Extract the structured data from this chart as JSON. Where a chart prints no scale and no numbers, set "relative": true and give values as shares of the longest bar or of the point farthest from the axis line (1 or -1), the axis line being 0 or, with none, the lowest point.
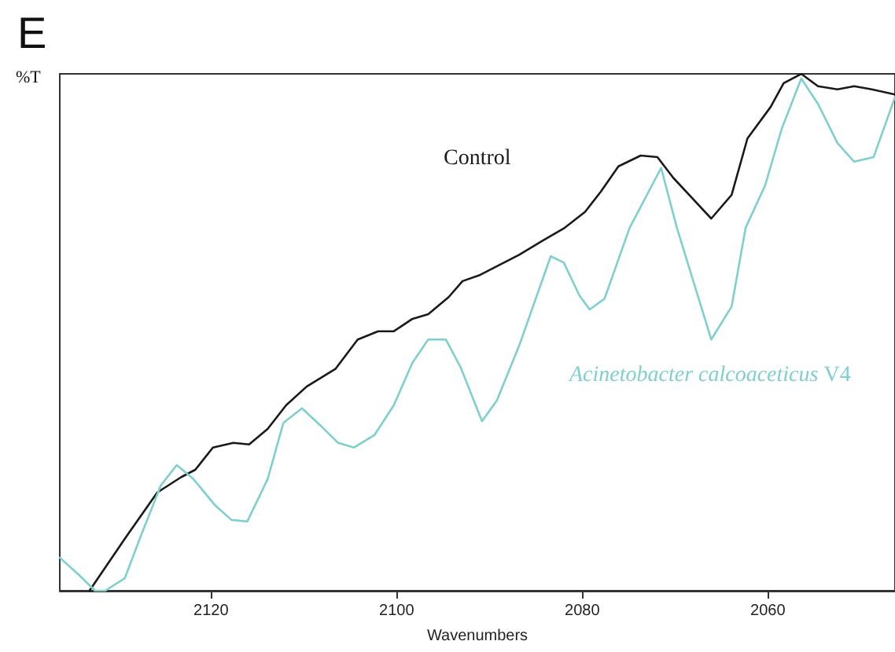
{
  "chart_data": {
    "type": "line",
    "title": "E",
    "xlabel": "Wavenumbers",
    "ylabel": "%T",
    "relative": true,
    "xlim": [
      2136.3,
      2046.3
    ],
    "xticks": [
      2120,
      2100,
      2080,
      2060
    ],
    "grid": false,
    "marker": "none",
    "line_style": "solid",
    "series": [
      {
        "name": "Control",
        "color": "#1a1a1a",
        "x": [
          2133.1,
          2129.2,
          2125.8,
          2123.2,
          2121.7,
          2119.8,
          2117.6,
          2115.9,
          2113.9,
          2111.9,
          2109.7,
          2106.6,
          2104.2,
          2102.0,
          2100.3,
          2098.3,
          2096.6,
          2094.4,
          2092.9,
          2091.0,
          2086.8,
          2084.2,
          2081.9,
          2079.7,
          2078.0,
          2076.1,
          2073.7,
          2071.9,
          2070.2,
          2066.1,
          2063.9,
          2062.2,
          2059.7,
          2058.3,
          2056.4,
          2054.6,
          2052.5,
          2050.7,
          2048.8,
          2046.3
        ],
        "values": [
          0,
          0.103,
          0.19,
          0.22,
          0.234,
          0.277,
          0.286,
          0.283,
          0.313,
          0.359,
          0.395,
          0.429,
          0.486,
          0.502,
          0.502,
          0.526,
          0.535,
          0.568,
          0.599,
          0.611,
          0.65,
          0.678,
          0.702,
          0.733,
          0.772,
          0.821,
          0.842,
          0.839,
          0.799,
          0.72,
          0.766,
          0.875,
          0.936,
          0.982,
          1.0,
          0.976,
          0.97,
          0.976,
          0.97,
          0.96
        ]
      },
      {
        "name": "Acinetobacter calcoaceticus V4",
        "color": "#7fcfcf",
        "x": [
          2136.3,
          2134.2,
          2132.5,
          2131.4,
          2129.3,
          2127.5,
          2125.4,
          2123.7,
          2121.9,
          2119.5,
          2117.8,
          2116.1,
          2113.9,
          2112.2,
          2110.2,
          2108.0,
          2106.3,
          2104.6,
          2102.4,
          2100.3,
          2098.3,
          2096.6,
          2094.7,
          2093.1,
          2090.8,
          2089.2,
          2086.8,
          2083.4,
          2082.0,
          2080.3,
          2079.2,
          2077.6,
          2074.9,
          2071.5,
          2069.8,
          2066.1,
          2063.9,
          2062.4,
          2060.3,
          2058.5,
          2056.4,
          2054.6,
          2052.5,
          2050.7,
          2048.6,
          2046.3
        ],
        "values": [
          0.064,
          0.03,
          0,
          0,
          0.024,
          0.109,
          0.204,
          0.243,
          0.216,
          0.164,
          0.137,
          0.134,
          0.216,
          0.325,
          0.353,
          0.316,
          0.286,
          0.277,
          0.301,
          0.359,
          0.441,
          0.486,
          0.486,
          0.432,
          0.328,
          0.368,
          0.474,
          0.647,
          0.635,
          0.571,
          0.544,
          0.565,
          0.702,
          0.818,
          0.702,
          0.486,
          0.55,
          0.702,
          0.784,
          0.894,
          0.991,
          0.942,
          0.866,
          0.83,
          0.839,
          0.955
        ]
      }
    ]
  }
}
